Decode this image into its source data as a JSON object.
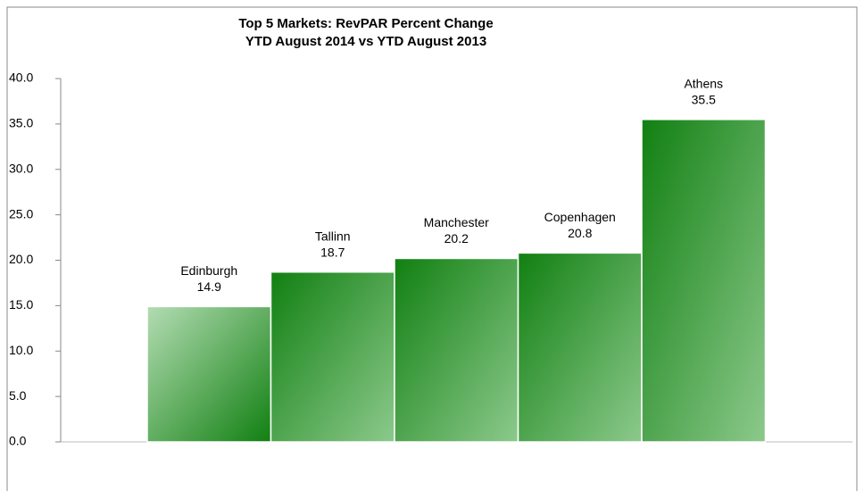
{
  "chart_data": {
    "type": "bar",
    "title": "Top 5 Markets: RevPAR Percent Change",
    "subtitle": "YTD August 2014 vs YTD August 2013",
    "categories": [
      "Edinburgh",
      "Tallinn",
      "Manchester",
      "Copenhagen",
      "Athens"
    ],
    "values": [
      14.9,
      18.7,
      20.2,
      20.8,
      35.5
    ],
    "color": "#118011",
    "ylim": [
      0,
      40
    ],
    "yticks": [
      {
        "value": 0,
        "label": "0.0"
      },
      {
        "value": 5,
        "label": "5.0"
      },
      {
        "value": 10,
        "label": "10.0"
      },
      {
        "value": 15,
        "label": "15.0"
      },
      {
        "value": 20,
        "label": "20.0"
      },
      {
        "value": 25,
        "label": "25.0"
      },
      {
        "value": 30,
        "label": "30.0"
      },
      {
        "value": 35,
        "label": "35.0"
      },
      {
        "value": 40,
        "label": "40.0"
      }
    ],
    "grid": false
  }
}
